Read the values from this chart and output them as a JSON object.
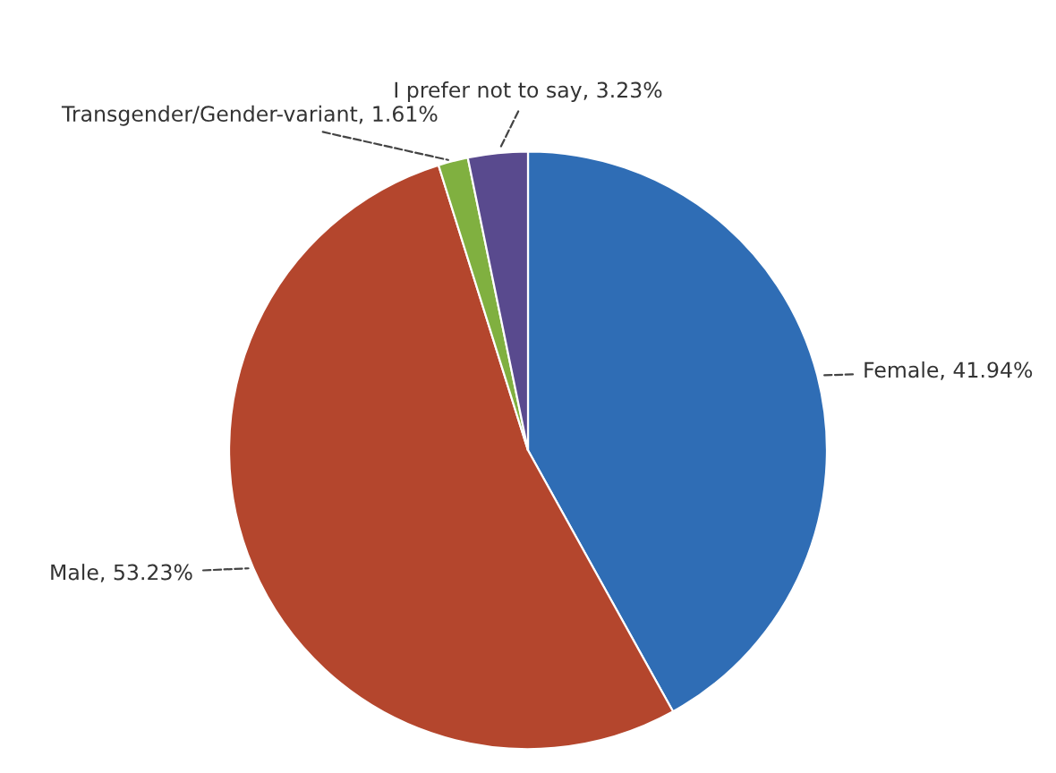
{
  "chart_data": {
    "type": "pie",
    "categories": [
      "Female",
      "Male",
      "Transgender/Gender-variant",
      "I prefer not to say"
    ],
    "values": [
      41.94,
      53.23,
      1.61,
      3.23
    ],
    "value_labels": [
      "41.94%",
      "53.23%",
      "1.61%",
      "3.23%"
    ],
    "colors": [
      "#2f6db5",
      "#b4462d",
      "#80b040",
      "#594a8e"
    ]
  }
}
